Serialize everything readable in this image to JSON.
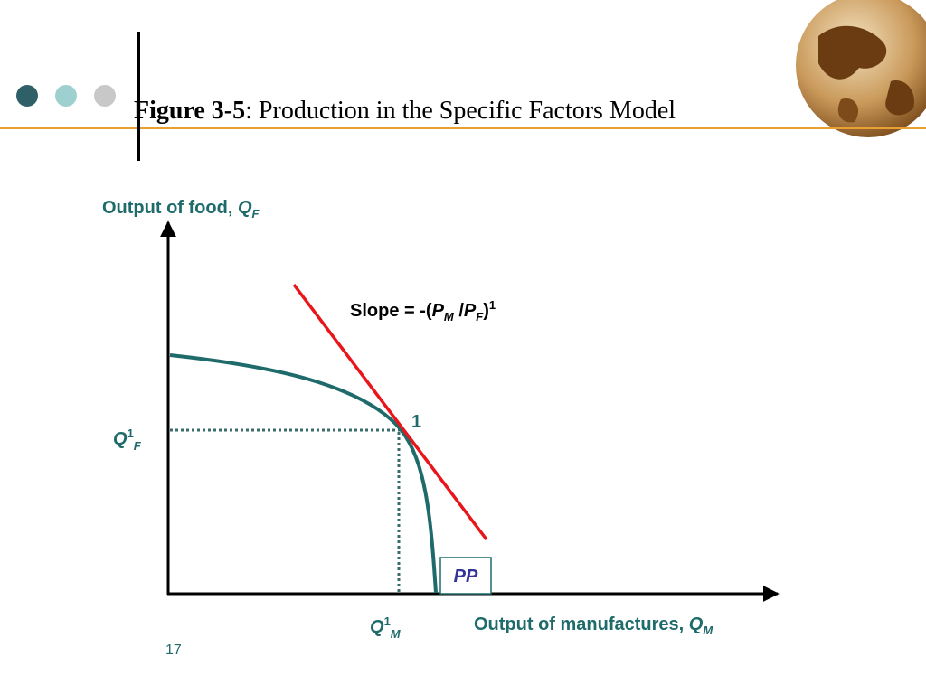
{
  "header": {
    "title_bold": "Figure 3-5",
    "title_rest": ": Production in the Specific Factors Model"
  },
  "diagram": {
    "y_axis_label": {
      "text": "Output of food, ",
      "symbol": "Q",
      "subscript": "F"
    },
    "x_axis_label": {
      "text": "Output of manufactures, ",
      "symbol": "Q",
      "subscript": "M"
    },
    "slope_label": {
      "prefix": "Slope = -(",
      "numerator": "P",
      "numerator_sub": "M",
      "divider": " /",
      "denominator": "P",
      "denominator_sub": "F",
      "suffix": ")",
      "superscript": "1"
    },
    "point_label": "1",
    "y_marker": {
      "symbol": "Q",
      "superscript": "1",
      "subscript": "F"
    },
    "x_marker": {
      "symbol": "Q",
      "superscript": "1",
      "subscript": "M"
    },
    "curve_label": "PP"
  },
  "footer": {
    "page_number": "17"
  }
}
